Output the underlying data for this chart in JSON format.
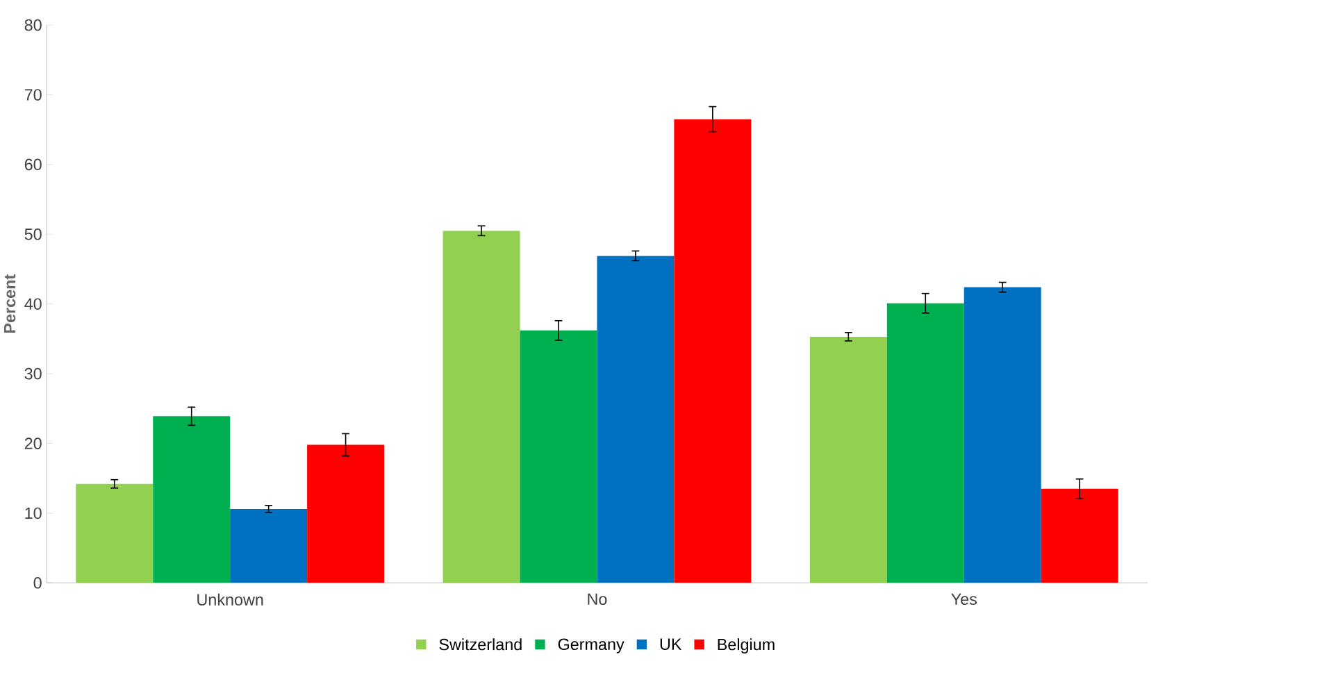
{
  "chart_data": {
    "type": "bar",
    "ylabel": "Percent",
    "categories": [
      "Unknown",
      "No",
      "Yes"
    ],
    "series": [
      {
        "name": "Switzerland",
        "color": "#92d050",
        "values": [
          14.2,
          50.5,
          35.3
        ],
        "errors": [
          0.6,
          0.7,
          0.6
        ]
      },
      {
        "name": "Germany",
        "color": "#00b050",
        "values": [
          23.9,
          36.2,
          40.1
        ],
        "errors": [
          1.3,
          1.4,
          1.4
        ]
      },
      {
        "name": "UK",
        "color": "#0070c0",
        "values": [
          10.6,
          46.9,
          42.4
        ],
        "errors": [
          0.5,
          0.7,
          0.7
        ]
      },
      {
        "name": "Belgium",
        "color": "#ff0000",
        "values": [
          19.8,
          66.5,
          13.5
        ],
        "errors": [
          1.6,
          1.8,
          1.4
        ]
      }
    ],
    "ylim": [
      0,
      80
    ],
    "yticks": [
      0,
      10,
      20,
      30,
      40,
      50,
      60,
      70,
      80
    ],
    "legend": "bottom"
  }
}
